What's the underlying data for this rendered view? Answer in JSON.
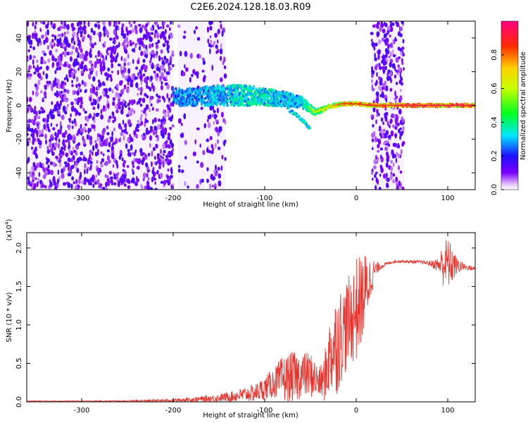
{
  "title": "C2E6.2024.128.18.03.R09",
  "colors": {
    "snr_line": "#e8312a",
    "axis": "#000000"
  },
  "chart_data": [
    {
      "type": "heatmap",
      "title": "",
      "xlabel": "Height of straight line (km)",
      "ylabel": "Frequency (Hz)",
      "xlim": [
        -360,
        130
      ],
      "ylim": [
        -50,
        50
      ],
      "xticks": [
        -300,
        -200,
        -100,
        0,
        100
      ],
      "yticks": [
        -40,
        -20,
        0,
        20,
        40
      ],
      "colorbar": {
        "label": "Normalized spectral amplitude",
        "range": [
          0.0,
          1.0
        ],
        "ticks": [
          "0.0",
          "0.2",
          "0.4",
          "0.6",
          "0.8"
        ],
        "tick_values": [
          0.0,
          0.2,
          0.4,
          0.6,
          0.8
        ],
        "colormap": "rainbow (white-violet-blue-cyan-green-yellow-red-magenta)"
      },
      "noise_regions": [
        {
          "x": [
            -360,
            -200
          ],
          "level": "dense"
        },
        {
          "x": [
            -195,
            -165
          ],
          "level": "sparse"
        },
        {
          "x": [
            -163,
            -143
          ],
          "level": "medium"
        },
        {
          "x": [
            17,
            52
          ],
          "level": "dense"
        }
      ],
      "signal_trace": [
        {
          "x": -200,
          "freq": 5,
          "spread": 10,
          "amp": 0.35
        },
        {
          "x": -180,
          "freq": 5,
          "spread": 10,
          "amp": 0.35
        },
        {
          "x": -150,
          "freq": 6,
          "spread": 12,
          "amp": 0.4
        },
        {
          "x": -120,
          "freq": 6,
          "spread": 12,
          "amp": 0.45
        },
        {
          "x": -100,
          "freq": 5,
          "spread": 10,
          "amp": 0.45
        },
        {
          "x": -80,
          "freq": 4,
          "spread": 9,
          "amp": 0.4
        },
        {
          "x": -60,
          "freq": 2,
          "spread": 6,
          "amp": 0.4
        },
        {
          "x": -45,
          "freq": -4,
          "spread": 4,
          "amp": 0.6
        },
        {
          "x": -30,
          "freq": -1,
          "spread": 3,
          "amp": 0.7
        },
        {
          "x": -15,
          "freq": 1,
          "spread": 2,
          "amp": 0.85
        },
        {
          "x": 0,
          "freq": 1,
          "spread": 2,
          "amp": 0.85
        },
        {
          "x": 15,
          "freq": 0,
          "spread": 2,
          "amp": 0.9
        },
        {
          "x": 55,
          "freq": 0,
          "spread": 2,
          "amp": 0.95
        },
        {
          "x": 100,
          "freq": 0,
          "spread": 2,
          "amp": 0.95
        },
        {
          "x": 130,
          "freq": 0,
          "spread": 2,
          "amp": 0.95
        }
      ],
      "signal_branch": [
        {
          "x": -75,
          "freq": -2
        },
        {
          "x": -60,
          "freq": -8
        },
        {
          "x": -50,
          "freq": -14
        }
      ]
    },
    {
      "type": "line",
      "title": "",
      "xlabel": "Height of straight line (km)",
      "ylabel": "SNR (10 * v/v)",
      "y_multiplier": "(x10^4)",
      "y_multiplier_base": "(x10",
      "y_multiplier_exp": "4",
      "y_multiplier_close": ")",
      "xlim": [
        -360,
        130
      ],
      "ylim": [
        0,
        2.2
      ],
      "xticks": [
        -300,
        -200,
        -100,
        0,
        100
      ],
      "yticks": [
        "0.0",
        "0.5",
        "1.0",
        "1.5",
        "2.0"
      ],
      "ytick_values": [
        0.0,
        0.5,
        1.0,
        1.5,
        2.0
      ],
      "series": [
        {
          "x": [
            -360,
            -300,
            -250,
            -200,
            -180,
            -150,
            -130,
            -110,
            -100,
            -90,
            -80,
            -70,
            -60,
            -50,
            -45,
            -40,
            -35,
            -30,
            -25,
            -20,
            -15,
            -10,
            -5,
            0,
            5,
            10,
            15,
            20,
            25,
            30,
            35,
            40,
            50,
            60,
            70,
            80,
            90,
            95,
            100,
            105,
            110,
            120,
            130
          ],
          "y": [
            0.01,
            0.01,
            0.01,
            0.02,
            0.03,
            0.05,
            0.08,
            0.12,
            0.18,
            0.25,
            0.3,
            0.3,
            0.35,
            0.35,
            0.3,
            0.25,
            0.3,
            0.55,
            0.7,
            0.8,
            0.9,
            1.0,
            1.1,
            1.2,
            1.3,
            1.45,
            1.6,
            1.7,
            1.75,
            1.78,
            1.8,
            1.82,
            1.83,
            1.82,
            1.82,
            1.8,
            1.78,
            1.8,
            1.8,
            1.78,
            1.77,
            1.75,
            1.73
          ],
          "noise": [
            0.005,
            0.005,
            0.01,
            0.02,
            0.03,
            0.05,
            0.08,
            0.12,
            0.15,
            0.2,
            0.3,
            0.35,
            0.3,
            0.3,
            0.25,
            0.2,
            0.3,
            0.5,
            0.6,
            0.7,
            0.6,
            0.6,
            0.6,
            0.7,
            0.6,
            0.5,
            0.3,
            0.15,
            0.05,
            0.03,
            0.02,
            0.02,
            0.02,
            0.02,
            0.02,
            0.03,
            0.1,
            0.3,
            0.35,
            0.25,
            0.1,
            0.04,
            0.03
          ]
        }
      ]
    }
  ]
}
